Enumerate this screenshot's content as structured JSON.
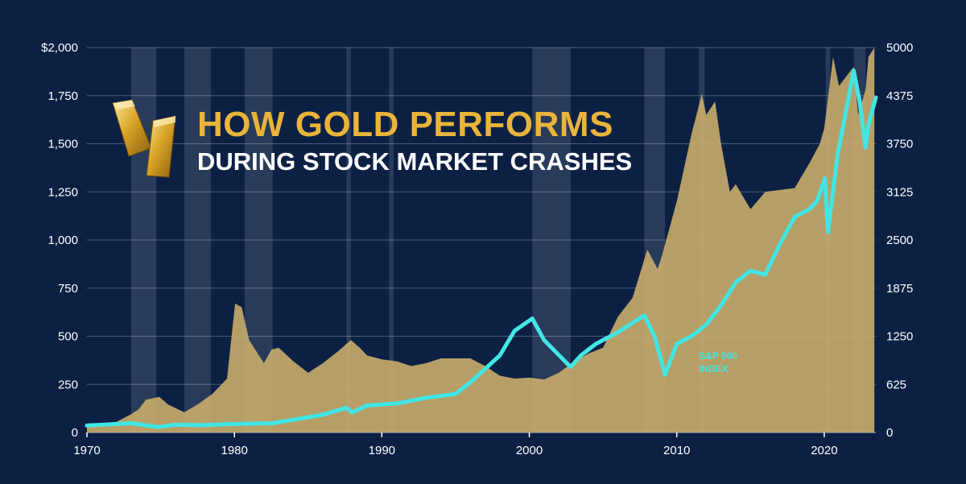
{
  "title": {
    "main": "HOW GOLD PERFORMS",
    "sub": "DURING STOCK MARKET CRASHES"
  },
  "colors": {
    "background": "#0c2044",
    "gold_area": "#c9ad6a",
    "sp500_line": "#42e6e6",
    "crash_band": "#ffffff",
    "title_accent": "#e9b43a"
  },
  "icons": {
    "logo": "gold-bars-icon"
  },
  "axes": {
    "x_ticks": [
      "1970",
      "1980",
      "1990",
      "2000",
      "2010",
      "2020"
    ],
    "y_left_ticks": [
      "$2,000",
      "1,750",
      "1,500",
      "1,250",
      "1,000",
      "750",
      "500",
      "250",
      "0"
    ],
    "y_right_ticks": [
      "5000",
      "4375",
      "3750",
      "3125",
      "2500",
      "1875",
      "1250",
      "625",
      "0"
    ]
  },
  "series_label": "S&P 500 INDEX",
  "chart_data": {
    "type": "area",
    "title": "HOW GOLD PERFORMS DURING STOCK MARKET CRASHES",
    "xlim": [
      1970,
      2023.5
    ],
    "ylim_left": [
      0,
      2000
    ],
    "ylim_right": [
      0,
      5000
    ],
    "grid": true,
    "crash_periods": [
      [
        1973.0,
        1974.7
      ],
      [
        1976.6,
        1978.4
      ],
      [
        1980.7,
        1982.6
      ],
      [
        1987.6,
        1987.9
      ],
      [
        1990.5,
        1990.8
      ],
      [
        2000.2,
        2002.8
      ],
      [
        2007.8,
        2009.2
      ],
      [
        2011.5,
        2011.9
      ],
      [
        2020.1,
        2020.4
      ],
      [
        2022.0,
        2022.8
      ]
    ],
    "series": [
      {
        "type": "area",
        "axis": "left",
        "x": [
          1970,
          1971,
          1972,
          1973,
          1973.5,
          1974,
          1974.9,
          1975.5,
          1976.6,
          1977.5,
          1978.5,
          1979.5,
          1980.05,
          1980.5,
          1981,
          1982,
          1982.5,
          1983,
          1984,
          1985,
          1986,
          1987,
          1987.9,
          1988.5,
          1989,
          1990,
          1991,
          1992,
          1993,
          1994,
          1995,
          1996,
          1997,
          1998,
          1999,
          2000,
          2001,
          2002,
          2003,
          2004,
          2005,
          2006,
          2007,
          2008,
          2008.7,
          2009,
          2010,
          2011,
          2011.7,
          2012,
          2012.6,
          2013,
          2013.6,
          2014,
          2015,
          2016,
          2017,
          2018,
          2019,
          2019.7,
          2020,
          2020.6,
          2021,
          2022,
          2022.3,
          2022.8,
          2023,
          2023.4
        ],
        "values": [
          35,
          40,
          55,
          95,
          120,
          170,
          185,
          145,
          105,
          145,
          200,
          280,
          670,
          650,
          480,
          360,
          430,
          440,
          370,
          310,
          360,
          420,
          480,
          440,
          400,
          380,
          370,
          345,
          360,
          385,
          385,
          385,
          345,
          295,
          280,
          285,
          275,
          310,
          365,
          410,
          440,
          600,
          700,
          950,
          850,
          920,
          1200,
          1550,
          1760,
          1650,
          1720,
          1500,
          1250,
          1290,
          1160,
          1250,
          1260,
          1270,
          1400,
          1500,
          1580,
          1950,
          1800,
          1900,
          1650,
          1780,
          1950,
          2000
        ]
      },
      {
        "type": "line",
        "axis": "right",
        "name": "S&P 500 INDEX",
        "x": [
          1970,
          1972,
          1973,
          1974.8,
          1976,
          1978,
          1980,
          1982.6,
          1984,
          1986,
          1987.6,
          1988,
          1989,
          1991,
          1993,
          1995,
          1996,
          1998,
          1999,
          2000.2,
          2001,
          2002.8,
          2003.5,
          2004.5,
          2006,
          2007.8,
          2008.5,
          2009.2,
          2010,
          2011,
          2012,
          2013,
          2014,
          2015,
          2016,
          2017,
          2018,
          2019,
          2019.5,
          2020.05,
          2020.25,
          2020.9,
          2021.5,
          2022.0,
          2022.4,
          2022.8,
          2023,
          2023.5
        ],
        "values": [
          90,
          110,
          120,
          70,
          100,
          95,
          110,
          120,
          165,
          230,
          320,
          260,
          350,
          375,
          450,
          500,
          650,
          1000,
          1320,
          1480,
          1200,
          850,
          1000,
          1150,
          1300,
          1520,
          1250,
          750,
          1150,
          1250,
          1400,
          1650,
          1950,
          2100,
          2050,
          2450,
          2800,
          2900,
          3000,
          3300,
          2600,
          3600,
          4200,
          4700,
          4300,
          3700,
          4000,
          4350
        ]
      }
    ]
  }
}
